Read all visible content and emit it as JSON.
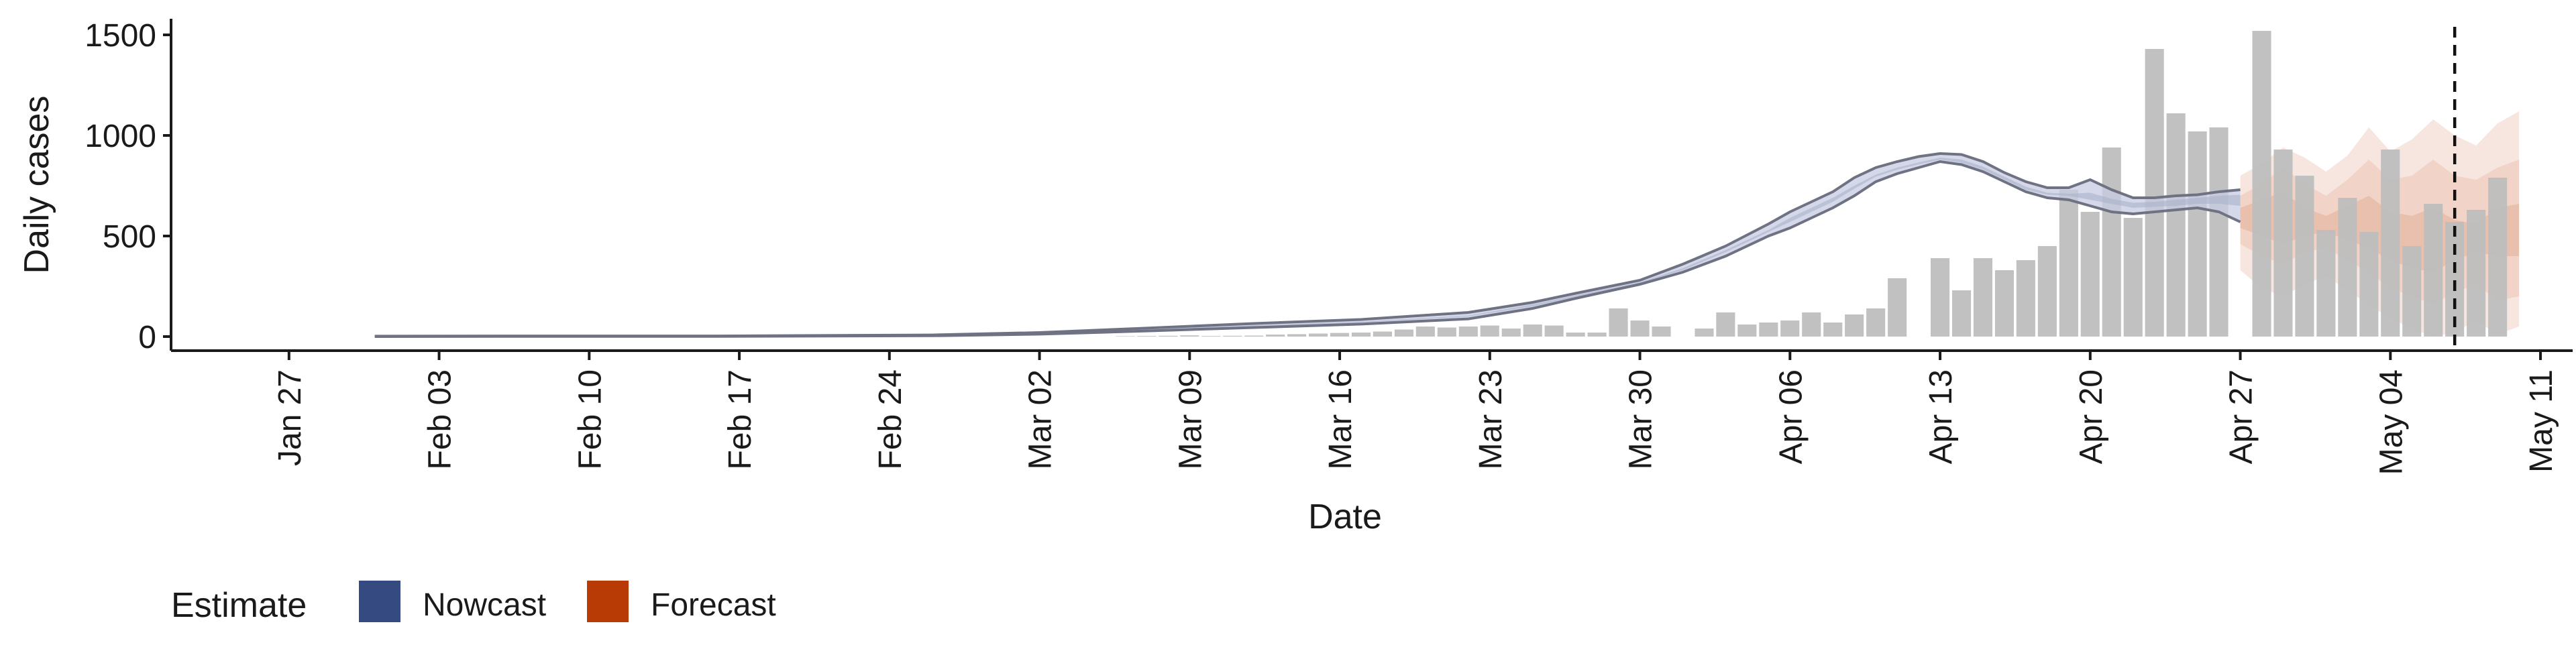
{
  "chart_data": {
    "type": "bar",
    "title": "",
    "xlabel": "Date",
    "ylabel": "Daily cases",
    "ylim": [
      -70,
      1580
    ],
    "yticks": [
      0,
      500,
      1000,
      1500
    ],
    "x_range_days": [
      -5.5,
      106.5
    ],
    "x_ticks": [
      {
        "label": "Jan 27",
        "day": 0
      },
      {
        "label": "Feb 03",
        "day": 7
      },
      {
        "label": "Feb 10",
        "day": 14
      },
      {
        "label": "Feb 17",
        "day": 21
      },
      {
        "label": "Feb 24",
        "day": 28
      },
      {
        "label": "Mar 02",
        "day": 35
      },
      {
        "label": "Mar 09",
        "day": 42
      },
      {
        "label": "Mar 16",
        "day": 49
      },
      {
        "label": "Mar 23",
        "day": 56
      },
      {
        "label": "Mar 30",
        "day": 63
      },
      {
        "label": "Apr 06",
        "day": 70
      },
      {
        "label": "Apr 13",
        "day": 77
      },
      {
        "label": "Apr 20",
        "day": 84
      },
      {
        "label": "Apr 27",
        "day": 91
      },
      {
        "label": "May 04",
        "day": 98
      },
      {
        "label": "May 11",
        "day": 105
      }
    ],
    "reported_cases": {
      "start_day": 39,
      "values": [
        2,
        3,
        4,
        6,
        3,
        4,
        5,
        10,
        12,
        15,
        18,
        20,
        25,
        35,
        50,
        45,
        50,
        55,
        40,
        60,
        55,
        20,
        20,
        140,
        80,
        50,
        0,
        40,
        120,
        60,
        70,
        80,
        120,
        70,
        110,
        140,
        290,
        0,
        390,
        230,
        390,
        330,
        380,
        450,
        730,
        620,
        940,
        590,
        1430,
        1110,
        1020,
        1040,
        0,
        1520,
        930,
        800,
        530,
        690,
        520,
        930,
        450,
        660,
        570,
        630,
        790
      ]
    },
    "nowcast": {
      "days": [
        4,
        10,
        20,
        30,
        35,
        40,
        45,
        50,
        55,
        58,
        60,
        63,
        65,
        67,
        69,
        70,
        71,
        72,
        73,
        74,
        75,
        76,
        77,
        78,
        79,
        80,
        81,
        82,
        83,
        84,
        85,
        86,
        87,
        88,
        89,
        90,
        91
      ],
      "upper": [
        2,
        3,
        3,
        8,
        20,
        42,
        65,
        85,
        120,
        170,
        215,
        280,
        360,
        450,
        560,
        620,
        670,
        720,
        790,
        840,
        870,
        895,
        910,
        905,
        870,
        815,
        770,
        740,
        740,
        780,
        730,
        690,
        690,
        700,
        705,
        720,
        730
      ],
      "lower": [
        0,
        1,
        1,
        4,
        12,
        28,
        45,
        62,
        88,
        140,
        190,
        260,
        320,
        400,
        500,
        540,
        590,
        640,
        700,
        770,
        810,
        840,
        870,
        855,
        820,
        770,
        720,
        690,
        680,
        650,
        620,
        610,
        620,
        630,
        640,
        620,
        570
      ],
      "median_upper": [
        1,
        2,
        2,
        6,
        16,
        35,
        56,
        74,
        104,
        160,
        205,
        270,
        340,
        430,
        530,
        590,
        640,
        690,
        750,
        805,
        840,
        866,
        890,
        880,
        845,
        795,
        745,
        715,
        710,
        715,
        685,
        665,
        670,
        680,
        690,
        700,
        705
      ],
      "median_lower": [
        1,
        2,
        2,
        5,
        15,
        33,
        52,
        70,
        100,
        150,
        198,
        265,
        330,
        420,
        520,
        570,
        620,
        670,
        735,
        795,
        830,
        856,
        880,
        865,
        830,
        780,
        730,
        705,
        700,
        680,
        660,
        640,
        645,
        650,
        660,
        660,
        650
      ]
    },
    "forecast": {
      "days": [
        91,
        92,
        93,
        94,
        95,
        96,
        97,
        98,
        99,
        100,
        101,
        102,
        103,
        104
      ],
      "outer_upper": [
        800,
        860,
        940,
        890,
        820,
        900,
        1040,
        920,
        980,
        1080,
        1000,
        950,
        1060,
        1120
      ],
      "outer_lower": [
        330,
        240,
        200,
        260,
        300,
        230,
        160,
        90,
        40,
        0,
        20,
        80,
        10,
        50
      ],
      "mid_upper": [
        700,
        760,
        840,
        760,
        700,
        780,
        880,
        780,
        800,
        880,
        800,
        780,
        840,
        880
      ],
      "mid_lower": [
        460,
        400,
        360,
        420,
        440,
        380,
        320,
        240,
        200,
        160,
        220,
        260,
        180,
        200
      ],
      "inner_upper": [
        640,
        680,
        720,
        640,
        600,
        650,
        700,
        620,
        600,
        640,
        580,
        560,
        640,
        660
      ],
      "inner_lower": [
        540,
        500,
        460,
        500,
        520,
        480,
        440,
        380,
        340,
        320,
        380,
        420,
        400,
        400
      ]
    },
    "vline_day": 101,
    "legend": {
      "title": "Estimate",
      "position": "bottom-left",
      "items": [
        {
          "label": "Nowcast",
          "color": "#354a80"
        },
        {
          "label": "Forecast",
          "color": "#b83a04"
        }
      ]
    },
    "colors": {
      "bars": "#bebebe",
      "nowcast_band": "#c5cbe0",
      "nowcast_line": "#6e7283",
      "forecast_outer": "#f7e6df",
      "forecast_mid": "#efcfc0",
      "forecast_inner": "#e6b8a2",
      "axis": "#1a1a1a"
    }
  }
}
